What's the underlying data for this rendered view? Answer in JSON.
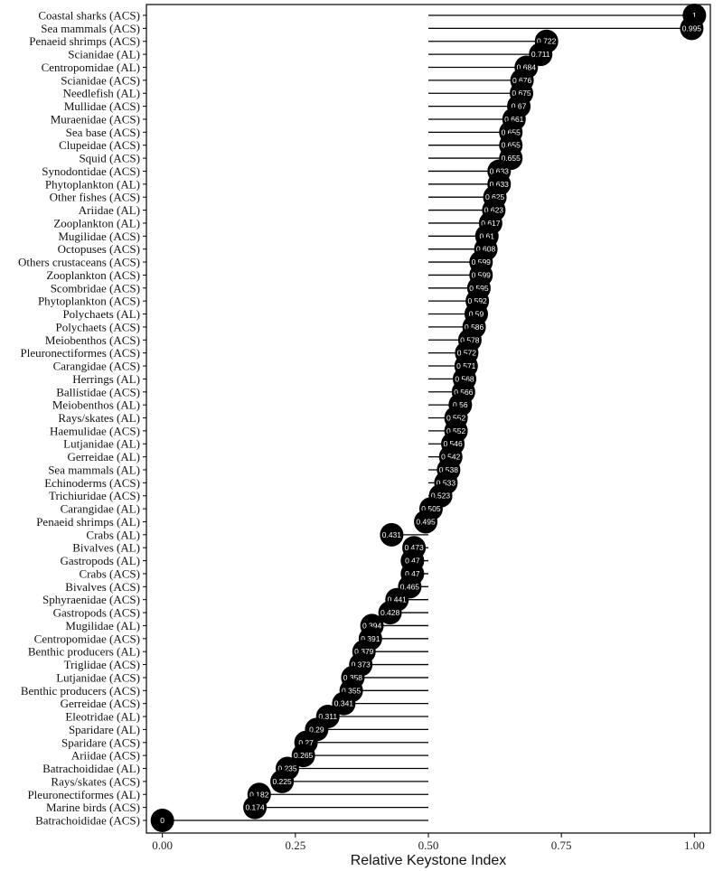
{
  "chart_data": {
    "type": "lollipop",
    "orientation": "horizontal",
    "title": "",
    "xlabel": "Relative Keystone Index",
    "ylabel": "",
    "xlim": [
      -0.03,
      1.03
    ],
    "xticks": [
      0.0,
      0.25,
      0.5,
      0.75,
      1.0
    ],
    "xtick_labels": [
      "0.00",
      "0.25",
      "0.50",
      "0.75",
      "1.00"
    ],
    "baseline": 0.5,
    "grid": false,
    "legend": "none",
    "colors": {
      "marker": "#000000",
      "stem": "#000000",
      "value_text": "#ffffff",
      "axis": "#000000"
    },
    "categories": [
      "Coastal sharks (ACS)",
      "Sea mammals (ACS)",
      "Penaeid shrimps (ACS)",
      "Scianidae (AL)",
      "Centropomidae (AL)",
      "Scianidae (ACS)",
      "Needlefish (AL)",
      "Mullidae (ACS)",
      "Muraenidae (ACS)",
      "Sea base (ACS)",
      "Clupeidae (ACS)",
      "Squid (ACS)",
      "Synodontidae (ACS)",
      "Phytoplankton (AL)",
      "Other fishes (ACS)",
      "Ariidae (AL)",
      "Zooplankton (AL)",
      "Mugilidae (ACS)",
      "Octopuses (ACS)",
      "Others crustaceans (ACS)",
      "Zooplankton (ACS)",
      "Scombridae (ACS)",
      "Phytoplankton (ACS)",
      "Polychaets (AL)",
      "Polychaets (ACS)",
      "Meiobenthos (ACS)",
      "Pleuronectiformes (ACS)",
      "Carangidae (ACS)",
      "Herrings (AL)",
      "Ballistidae (ACS)",
      "Meiobenthos (AL)",
      "Rays/skates (AL)",
      "Haemulidae (ACS)",
      "Lutjanidae (AL)",
      "Gerreidae (AL)",
      "Sea mammals (AL)",
      "Echinoderms (ACS)",
      "Trichiuridae (ACS)",
      "Carangidae (AL)",
      "Penaeid shrimps  (AL)",
      "Crabs (AL)",
      "Bivalves (AL)",
      "Gastropods (AL)",
      "Crabs (ACS)",
      "Bivalves (ACS)",
      "Sphyraenidae (ACS)",
      "Gastropods (ACS)",
      "Mugilidae (AL)",
      "Centropomidae (ACS)",
      "Benthic producers (AL)",
      "Triglidae (ACS)",
      "Lutjanidae (ACS)",
      "Benthic producers (ACS)",
      "Gerreidae (ACS)",
      "Eleotridae (AL)",
      "Sparidare (AL)",
      "Sparidare (ACS)",
      "Ariidae (ACS)",
      "Batrachoididae (AL)",
      "Rays/skates (ACS)",
      "Pleuronectiformes (AL)",
      "Marine birds (ACS)",
      "Batrachoididae (ACS)"
    ],
    "values": [
      1,
      0.995,
      0.722,
      0.711,
      0.684,
      0.676,
      0.675,
      0.67,
      0.661,
      0.655,
      0.655,
      0.655,
      0.633,
      0.633,
      0.625,
      0.623,
      0.617,
      0.61,
      0.608,
      0.599,
      0.599,
      0.595,
      0.592,
      0.59,
      0.586,
      0.578,
      0.572,
      0.571,
      0.568,
      0.566,
      0.56,
      0.552,
      0.552,
      0.546,
      0.542,
      0.538,
      0.533,
      0.523,
      0.505,
      0.495,
      0.431,
      0.473,
      0.47,
      0.47,
      0.465,
      0.441,
      0.428,
      0.394,
      0.391,
      0.379,
      0.373,
      0.358,
      0.355,
      0.341,
      0.311,
      0.29,
      0.27,
      0.265,
      0.235,
      0.225,
      0.182,
      0.174,
      0
    ],
    "value_labels": [
      "1",
      "0.995",
      "0.722",
      "0.711",
      "0.684",
      "0.676",
      "0.675",
      "0.67",
      "0.661",
      "0.655",
      "0.655",
      "0.655",
      "0.633",
      "0.633",
      "0.625",
      "0.623",
      "0.617",
      "0.61",
      "0.608",
      "0.599",
      "0.599",
      "0.595",
      "0.592",
      "0.59",
      "0.586",
      "0.578",
      "0.572",
      "0.571",
      "0.568",
      "0.566",
      "0.56",
      "0.552",
      "0.552",
      "0.546",
      "0.542",
      "0.538",
      "0.533",
      "0.523",
      "0.505",
      "0.495",
      "0.431",
      "0.473",
      "0.47",
      "0.47",
      "0.465",
      "0.441",
      "0.428",
      "0.394",
      "0.391",
      "0.379",
      "0.373",
      "0.358",
      "0.355",
      "0.341",
      "0.311",
      "0.29",
      "0.27",
      "0.265",
      "0.235",
      "0.225",
      "0.182",
      "0.174",
      "0"
    ]
  }
}
